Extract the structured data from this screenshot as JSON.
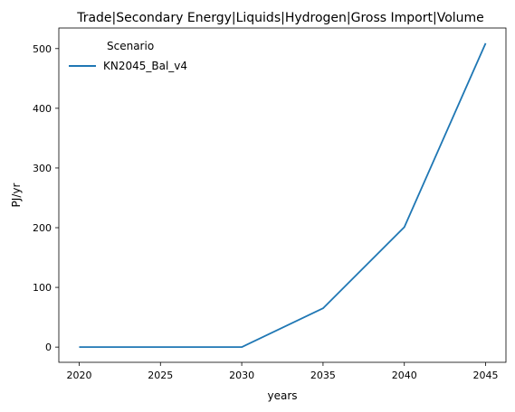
{
  "chart_data": {
    "type": "line",
    "title": "Trade|Secondary Energy|Liquids|Hydrogen|Gross Import|Volume",
    "xlabel": "years",
    "ylabel": "PJ/yr",
    "x": [
      2020,
      2025,
      2030,
      2035,
      2040,
      2045
    ],
    "xticks": [
      2020,
      2025,
      2030,
      2035,
      2040,
      2045
    ],
    "yticks": [
      0,
      100,
      200,
      300,
      400,
      500
    ],
    "xlim": [
      2018.75,
      2046.25
    ],
    "ylim": [
      -25.5,
      534.5
    ],
    "grid": false,
    "legend": {
      "title": "Scenario",
      "placement": "top-left"
    },
    "series": [
      {
        "name": "KN2045_Bal_v4",
        "color": "#1f77b4",
        "values": [
          0,
          0,
          0,
          65,
          201,
          509
        ]
      }
    ]
  }
}
